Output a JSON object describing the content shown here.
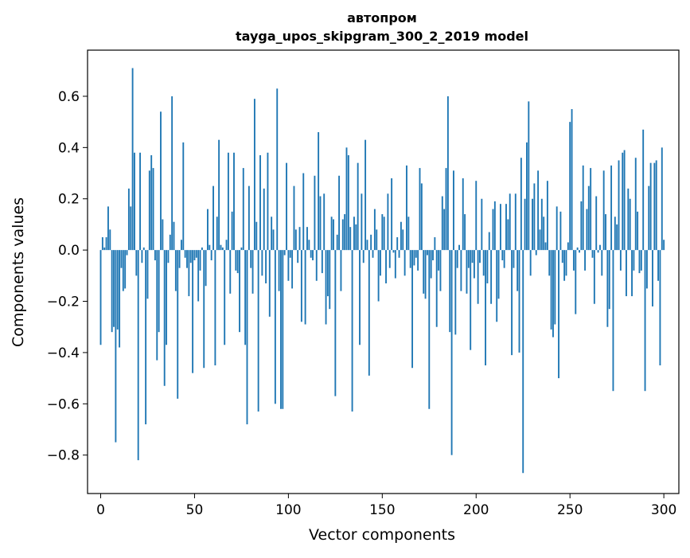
{
  "chart_data": {
    "type": "bar",
    "title_line1": "автопром",
    "title_line2": "tayga_upos_skipgram_300_2_2019 model",
    "xlabel": "Vector components",
    "ylabel": "Components values",
    "xlim": [
      -7,
      308
    ],
    "ylim": [
      -0.95,
      0.78
    ],
    "xticks": [
      0,
      50,
      100,
      150,
      200,
      250,
      300
    ],
    "xtick_labels": [
      "0",
      "50",
      "100",
      "150",
      "200",
      "250",
      "300"
    ],
    "yticks": [
      -0.8,
      -0.6,
      -0.4,
      -0.2,
      0.0,
      0.2,
      0.4,
      0.6
    ],
    "ytick_labels": [
      "−0.8",
      "−0.6",
      "−0.4",
      "−0.2",
      "0.0",
      "0.2",
      "0.4",
      "0.6"
    ],
    "bar_color": "#1f77b4",
    "grid": false,
    "values": [
      -0.37,
      0.05,
      0.01,
      0.05,
      0.17,
      0.08,
      -0.32,
      -0.3,
      -0.75,
      -0.31,
      -0.38,
      -0.07,
      -0.16,
      -0.15,
      -0.02,
      0.24,
      0.17,
      0.71,
      0.38,
      -0.1,
      -0.82,
      0.38,
      -0.05,
      0.01,
      -0.68,
      -0.19,
      0.31,
      0.37,
      0.32,
      -0.04,
      -0.43,
      -0.32,
      0.54,
      0.12,
      -0.53,
      -0.37,
      -0.05,
      0.06,
      0.6,
      0.11,
      -0.16,
      -0.58,
      -0.07,
      0.04,
      0.42,
      -0.03,
      -0.07,
      -0.18,
      -0.05,
      -0.48,
      -0.04,
      -0.03,
      -0.2,
      -0.08,
      0.01,
      -0.46,
      -0.14,
      0.16,
      0.02,
      -0.04,
      0.25,
      -0.45,
      0.13,
      0.43,
      0.02,
      0.01,
      -0.37,
      0.04,
      0.38,
      -0.17,
      0.15,
      0.38,
      -0.08,
      -0.09,
      -0.32,
      0.01,
      0.32,
      -0.37,
      -0.68,
      0.25,
      -0.07,
      -0.17,
      0.59,
      0.11,
      -0.63,
      0.37,
      -0.1,
      0.24,
      -0.13,
      0.38,
      -0.26,
      0.13,
      0.08,
      -0.6,
      0.63,
      -0.16,
      -0.62,
      -0.62,
      -0.02,
      0.34,
      -0.12,
      -0.03,
      -0.15,
      0.25,
      0.08,
      -0.05,
      0.09,
      -0.28,
      0.3,
      -0.29,
      0.09,
      0.04,
      -0.03,
      -0.04,
      0.29,
      -0.12,
      0.46,
      0.21,
      -0.09,
      0.22,
      -0.29,
      -0.18,
      -0.23,
      0.13,
      0.12,
      -0.57,
      0.06,
      0.29,
      -0.16,
      0.12,
      0.14,
      0.4,
      0.37,
      0.09,
      -0.63,
      0.13,
      0.1,
      0.34,
      -0.37,
      0.22,
      -0.05,
      0.43,
      0.04,
      -0.49,
      0.06,
      -0.03,
      0.16,
      0.08,
      -0.2,
      -0.1,
      0.14,
      0.13,
      -0.13,
      0.22,
      -0.07,
      0.28,
      -0.01,
      -0.11,
      0.05,
      -0.03,
      0.11,
      0.08,
      -0.1,
      0.33,
      0.13,
      -0.07,
      -0.46,
      -0.06,
      -0.03,
      -0.08,
      0.32,
      0.26,
      -0.17,
      -0.19,
      -0.02,
      -0.62,
      -0.11,
      -0.04,
      0.05,
      -0.3,
      -0.08,
      -0.16,
      0.21,
      0.16,
      0.32,
      0.6,
      -0.32,
      -0.8,
      0.31,
      -0.33,
      -0.07,
      0.02,
      -0.16,
      0.28,
      0.14,
      -0.17,
      -0.07,
      -0.39,
      -0.05,
      -0.11,
      0.27,
      -0.21,
      -0.05,
      0.2,
      -0.1,
      -0.45,
      -0.13,
      0.07,
      -0.21,
      0.16,
      0.19,
      -0.28,
      -0.19,
      0.18,
      -0.04,
      -0.07,
      0.18,
      0.12,
      0.22,
      -0.41,
      -0.07,
      0.22,
      -0.16,
      -0.4,
      0.36,
      -0.87,
      0.2,
      0.42,
      0.58,
      -0.1,
      0.2,
      0.26,
      -0.02,
      0.31,
      0.08,
      0.2,
      0.13,
      0.03,
      0.27,
      -0.1,
      -0.31,
      -0.34,
      -0.29,
      0.17,
      -0.5,
      0.15,
      -0.05,
      -0.12,
      -0.1,
      0.03,
      0.5,
      0.55,
      -0.08,
      -0.25,
      0.01,
      -0.01,
      0.19,
      0.33,
      -0.08,
      0.16,
      0.25,
      0.32,
      -0.03,
      -0.21,
      0.21,
      -0.01,
      0.02,
      -0.1,
      0.31,
      0.14,
      -0.3,
      -0.23,
      0.33,
      -0.55,
      0.13,
      0.1,
      0.35,
      -0.08,
      0.38,
      0.39,
      -0.18,
      0.24,
      0.2,
      -0.18,
      -0.08,
      0.36,
      0.15,
      -0.09,
      -0.08,
      0.47,
      -0.55,
      -0.15,
      0.25,
      0.34,
      -0.22,
      0.34,
      0.35,
      -0.12,
      -0.45,
      0.4,
      0.04
    ]
  }
}
